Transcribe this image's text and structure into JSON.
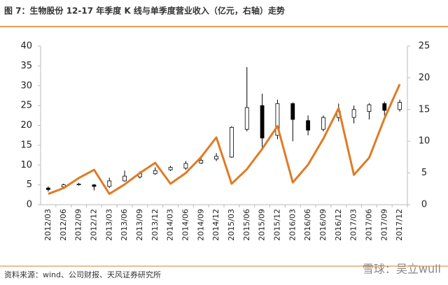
{
  "chart_data": {
    "type": "candlestick",
    "title": "图 7：生物股份 12-17 年季度 K 线与单季度营业收入（亿元，右轴）走势",
    "source": "资料来源：wind、公司财报、天风证券研究所",
    "watermark": "雪球：吴立wuli",
    "categories": [
      "2012/03",
      "2012/06",
      "2012/09",
      "2012/12",
      "2013/03",
      "2013/06",
      "2013/09",
      "2013/12",
      "2014/03",
      "2014/06",
      "2014/09",
      "2014/12",
      "2015/03",
      "2015/06",
      "2015/09",
      "2015/12",
      "2016/03",
      "2016/06",
      "2016/09",
      "2016/12",
      "2017/03",
      "2017/06",
      "2017/09",
      "2017/12"
    ],
    "open": [
      4.2,
      4.5,
      5.0,
      5.0,
      4.6,
      6.0,
      7.0,
      7.8,
      8.8,
      9.2,
      10.5,
      11.5,
      12.0,
      19.0,
      25.0,
      17.5,
      25.5,
      21.2,
      19.0,
      22.0,
      22.0,
      23.5,
      25.5,
      24.0
    ],
    "high": [
      4.6,
      5.3,
      5.5,
      5.2,
      6.8,
      8.6,
      8.4,
      9.4,
      9.8,
      11.0,
      12.0,
      13.0,
      19.8,
      34.7,
      28.0,
      26.5,
      25.8,
      22.5,
      22.5,
      25.5,
      25.0,
      25.6,
      26.0,
      26.5
    ],
    "low": [
      3.3,
      4.3,
      4.8,
      3.6,
      4.2,
      5.8,
      6.6,
      7.5,
      8.5,
      8.8,
      10.3,
      11.0,
      11.8,
      18.5,
      13.8,
      16.5,
      16.0,
      17.5,
      18.5,
      21.0,
      20.5,
      21.5,
      22.5,
      23.5
    ],
    "close": [
      3.8,
      5.0,
      5.2,
      4.6,
      6.0,
      7.2,
      7.8,
      8.6,
      9.4,
      10.4,
      11.2,
      12.2,
      19.5,
      24.5,
      16.8,
      25.5,
      21.5,
      18.8,
      22.0,
      23.5,
      24.0,
      25.2,
      23.8,
      25.8
    ],
    "up_color": "#ffffff",
    "down_color": "#000000",
    "series": [
      {
        "axis": "y2",
        "color": "#e07b24",
        "values": [
          1.7,
          2.6,
          4.2,
          5.5,
          1.7,
          3.2,
          5.0,
          6.6,
          3.3,
          5.0,
          7.5,
          10.6,
          3.3,
          5.6,
          8.8,
          12.4,
          3.5,
          6.3,
          10.4,
          15.2,
          4.7,
          7.4,
          13.6,
          19.0
        ]
      }
    ],
    "ylim": [
      0,
      40
    ],
    "yticks": [
      0,
      5,
      10,
      15,
      20,
      25,
      30,
      35,
      40
    ],
    "y2lim": [
      0,
      25
    ],
    "y2ticks": [
      0,
      5,
      10,
      15,
      20,
      25
    ],
    "accent_color": "#e07b24"
  }
}
